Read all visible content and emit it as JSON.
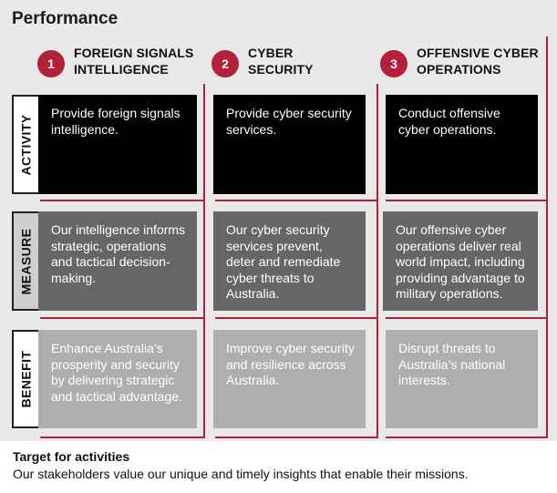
{
  "title": "Performance",
  "pillars": [
    {
      "number": "1",
      "label": "FOREIGN SIGNALS\nINTELLIGENCE"
    },
    {
      "number": "2",
      "label": "CYBER\nSECURITY"
    },
    {
      "number": "3",
      "label": "OFFENSIVE CYBER\nOPERATIONS"
    }
  ],
  "rows": {
    "activity": {
      "label": "ACTIVITY",
      "cells": [
        "Provide foreign signals intelligence.",
        "Provide cyber security services.",
        "Conduct offensive cyber operations."
      ]
    },
    "measure": {
      "label": "MEASURE",
      "cells": [
        "Our intelligence informs strategic, operations and tactical decision-making.",
        "Our cyber security services prevent, deter and remediate cyber threats to Australia.",
        "Our offensive cyber operations deliver real world impact, including providing advantage to military operations."
      ]
    },
    "benefit": {
      "label": "BENEFIT",
      "cells": [
        "Enhance Australia’s prosperity and security by delivering strategic and tactical advantage.",
        "Improve cyber security and resilience across Australia.",
        "Disrupt threats to Australia’s national interests."
      ]
    }
  },
  "target": {
    "title": "Target for activities",
    "text": "Our stakeholders value our unique and timely insights that enable their missions."
  },
  "colors": {
    "accent": "#b41f3a",
    "activity_fill": "#000000",
    "measure_fill": "#666666",
    "benefit_fill": "#aeaeae",
    "panel": "#e9e9e9"
  }
}
